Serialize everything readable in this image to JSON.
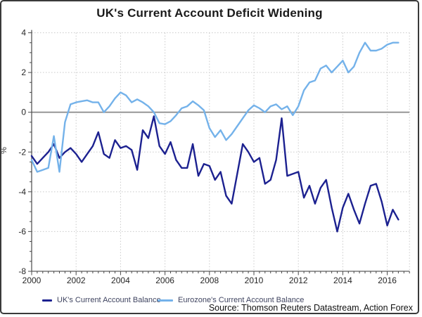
{
  "window": {
    "title": "UK's Current Account Deficit Widening"
  },
  "axis": {
    "y_unit_label": "%"
  },
  "source_note": "Source: Thomson Reuters Datastream, Action Forex",
  "chart_data": {
    "type": "line",
    "title": "UK's Current Account Deficit Widening",
    "xlabel": "",
    "ylabel": "%",
    "xlim": [
      2000,
      2017
    ],
    "ylim": [
      -8,
      4
    ],
    "x_ticks_major": [
      2000,
      2002,
      2004,
      2006,
      2008,
      2010,
      2012,
      2014,
      2016
    ],
    "y_ticks_major": [
      4,
      2,
      0,
      -2,
      -4,
      -6,
      -8
    ],
    "x_minor_step_years": 0.25,
    "y_minor_step": 0.5,
    "grid": true,
    "zero_line": true,
    "legend_position": "bottom",
    "x_start": 2000.0,
    "x_step": 0.25,
    "frequency": "quarterly",
    "colors": {
      "uk_line": "#1c2190",
      "eurozone_line": "#74b2ea",
      "gridline": "#c9c9c9",
      "zero_line": "#909090",
      "axis": "#4a4a4a"
    },
    "series": [
      {
        "name": "UK's Current Account Balance",
        "color": "#1c2190",
        "values": [
          -2.2,
          -2.6,
          -2.3,
          -2.0,
          -1.6,
          -2.3,
          -2.0,
          -1.8,
          -2.1,
          -2.5,
          -2.1,
          -1.7,
          -1.0,
          -2.1,
          -2.3,
          -1.4,
          -1.8,
          -1.7,
          -1.9,
          -2.9,
          -0.9,
          -1.3,
          -0.2,
          -1.7,
          -2.1,
          -1.5,
          -2.4,
          -2.8,
          -2.8,
          -1.6,
          -3.2,
          -2.6,
          -2.7,
          -3.4,
          -3.0,
          -4.2,
          -4.6,
          -3.1,
          -1.6,
          -2.0,
          -2.5,
          -2.3,
          -3.6,
          -3.4,
          -2.4,
          -0.3,
          -3.2,
          -3.1,
          -3.0,
          -4.3,
          -3.7,
          -4.6,
          -3.8,
          -3.4,
          -4.8,
          -6.0,
          -4.8,
          -4.1,
          -4.9,
          -5.6,
          -4.6,
          -3.7,
          -3.6,
          -4.5,
          -5.7,
          -4.9,
          -5.4
        ]
      },
      {
        "name": "Eurozone's Current Account Balance",
        "color": "#74b2ea",
        "values": [
          -2.4,
          -3.0,
          -2.9,
          -2.8,
          -1.2,
          -3.0,
          -0.5,
          0.4,
          0.5,
          0.55,
          0.6,
          0.5,
          0.5,
          0.0,
          0.3,
          0.7,
          1.0,
          0.85,
          0.5,
          0.65,
          0.5,
          0.3,
          0.0,
          -0.55,
          -0.6,
          -0.45,
          -0.15,
          0.2,
          0.3,
          0.55,
          0.35,
          0.1,
          -0.8,
          -1.25,
          -0.9,
          -1.4,
          -1.1,
          -0.7,
          -0.3,
          0.1,
          0.35,
          0.2,
          0.0,
          0.3,
          0.4,
          0.15,
          0.3,
          -0.15,
          0.3,
          1.1,
          1.5,
          1.6,
          2.2,
          2.35,
          2.0,
          2.3,
          2.6,
          2.0,
          2.3,
          3.0,
          3.5,
          3.1,
          3.1,
          3.2,
          3.4,
          3.5,
          3.5
        ]
      }
    ]
  }
}
